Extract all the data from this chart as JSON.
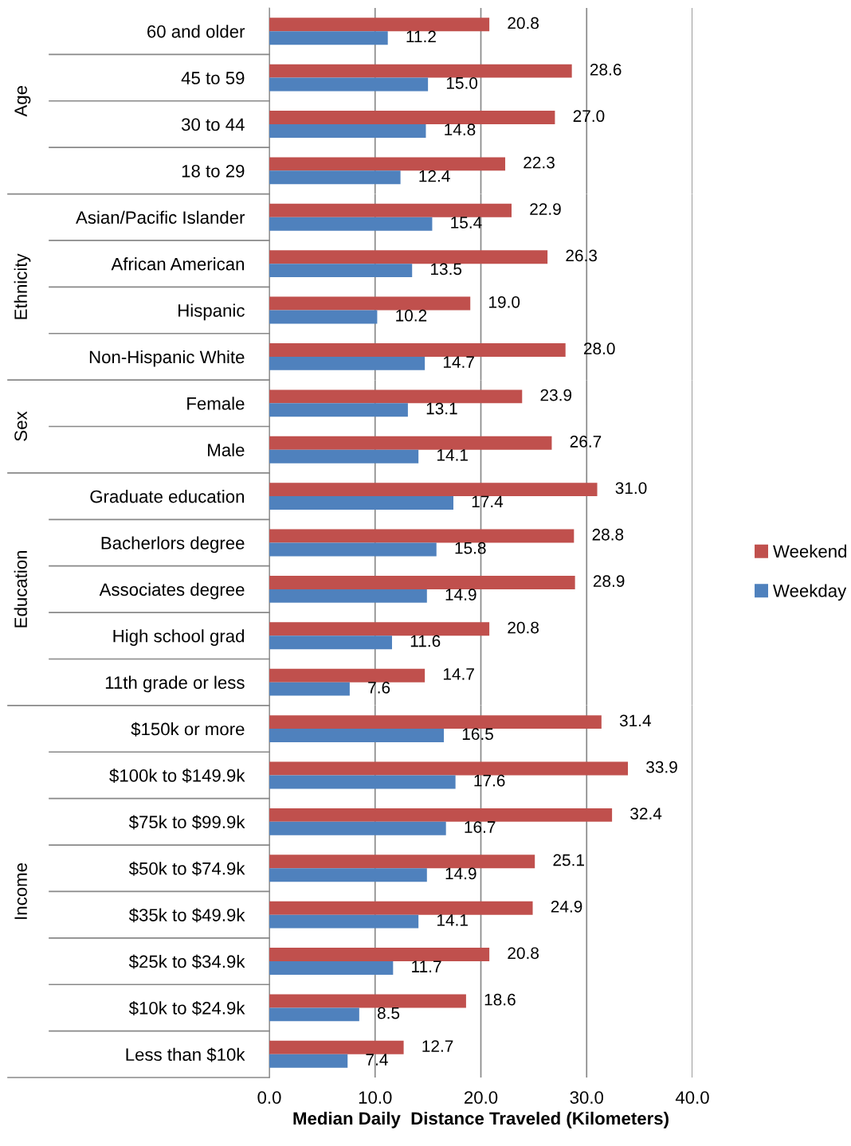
{
  "chart_data": [
    {
      "type": "bar",
      "orientation": "horizontal",
      "ylabel": "Age",
      "categories": [
        "60 and older",
        "45 to 59",
        "30 to 44",
        "18 to 29"
      ],
      "series": [
        {
          "name": "Weekend",
          "color": "#c0504d",
          "values": [
            20.8,
            28.6,
            27.0,
            22.3
          ],
          "value_labels": [
            "20.8",
            "28.6",
            "27.0",
            "22.3"
          ]
        },
        {
          "name": "Weekday",
          "color": "#4f81bd",
          "values": [
            11.2,
            15.0,
            14.8,
            12.4
          ],
          "value_labels": [
            "11.2",
            "15.0",
            "14.8",
            "12.4"
          ]
        }
      ],
      "xlim": [
        0,
        40
      ],
      "xticks": [
        0,
        10,
        20,
        30,
        40
      ],
      "tick_labels": "y",
      "grid": "x",
      "legend": "right",
      "data_labels": true
    },
    {
      "type": "bar",
      "orientation": "horizontal",
      "ylabel": "Ethnicity",
      "categories": [
        "Asian/Pacific Islander",
        "African American",
        "Hispanic",
        "Non-Hispanic White"
      ],
      "series": [
        {
          "color": "#c0504d",
          "values": [
            22.9,
            26.3,
            19.0,
            28.0
          ],
          "value_labels": [
            "22.9",
            "26.3",
            "19.0",
            "28.0"
          ]
        },
        {
          "color": "#4f81bd",
          "values": [
            15.4,
            13.5,
            10.2,
            14.7
          ],
          "value_labels": [
            "15.4",
            "13.5",
            "10.2",
            "14.7"
          ]
        }
      ],
      "xlim": [
        0,
        40
      ],
      "xticks": [
        0,
        10,
        20,
        30,
        40
      ],
      "tick_labels": "y",
      "grid": "x",
      "data_labels": true
    },
    {
      "type": "bar",
      "orientation": "horizontal",
      "ylabel": "Sex",
      "categories": [
        "Female",
        "Male"
      ],
      "series": [
        {
          "color": "#c0504d",
          "values": [
            23.9,
            26.7
          ],
          "value_labels": [
            "23.9",
            "26.7"
          ]
        },
        {
          "color": "#4f81bd",
          "values": [
            13.1,
            14.1
          ],
          "value_labels": [
            "13.1",
            "14.1"
          ]
        }
      ],
      "xlim": [
        0,
        40
      ],
      "xticks": [
        0,
        10,
        20,
        30,
        40
      ],
      "tick_labels": "y",
      "grid": "x",
      "data_labels": true
    },
    {
      "type": "bar",
      "orientation": "horizontal",
      "ylabel": "Education",
      "categories": [
        "Graduate education",
        "Bacherlors degree",
        "Associates degree",
        "High school grad",
        "11th grade or less"
      ],
      "series": [
        {
          "color": "#c0504d",
          "values": [
            31.0,
            28.8,
            28.9,
            20.8,
            14.7
          ],
          "value_labels": [
            "31.0",
            "28.8",
            "28.9",
            "20.8",
            "14.7"
          ]
        },
        {
          "color": "#4f81bd",
          "values": [
            17.4,
            15.8,
            14.9,
            11.6,
            7.6
          ],
          "value_labels": [
            "17.4",
            "15.8",
            "14.9",
            "11.6",
            "7.6"
          ]
        }
      ],
      "xlim": [
        0,
        40
      ],
      "xticks": [
        0,
        10,
        20,
        30,
        40
      ],
      "tick_labels": "y",
      "grid": "x",
      "data_labels": true
    },
    {
      "type": "bar",
      "orientation": "horizontal",
      "ylabel": "Income",
      "xlabel": "Median Daily  Distance Traveled (Kilometers)",
      "categories": [
        "$150k or more",
        "$100k to $149.9k",
        "$75k to $99.9k",
        "$50k to $74.9k",
        "$35k to $49.9k",
        "$25k to $34.9k",
        "$10k to $24.9k",
        "Less than $10k"
      ],
      "series": [
        {
          "color": "#c0504d",
          "values": [
            31.4,
            33.9,
            32.4,
            25.1,
            24.9,
            20.8,
            18.6,
            12.7
          ],
          "value_labels": [
            "31.4",
            "33.9",
            "32.4",
            "25.1",
            "24.9",
            "20.8",
            "18.6",
            "12.7"
          ]
        },
        {
          "color": "#4f81bd",
          "values": [
            16.5,
            17.6,
            16.7,
            14.9,
            14.1,
            11.7,
            8.5,
            7.4
          ],
          "value_labels": [
            "16.5",
            "17.6",
            "16.7",
            "14.9",
            "14.1",
            "11.7",
            "8.5",
            "7.4"
          ]
        }
      ],
      "xlim": [
        0,
        40
      ],
      "xticks": [
        {
          "value": 0,
          "label": "0.0"
        },
        {
          "value": 10,
          "label": "10.0"
        },
        {
          "value": 20,
          "label": "20.0"
        },
        {
          "value": 30,
          "label": "30.0"
        },
        {
          "value": 40,
          "label": "40.0"
        }
      ],
      "grid": "x",
      "data_labels": true
    }
  ]
}
